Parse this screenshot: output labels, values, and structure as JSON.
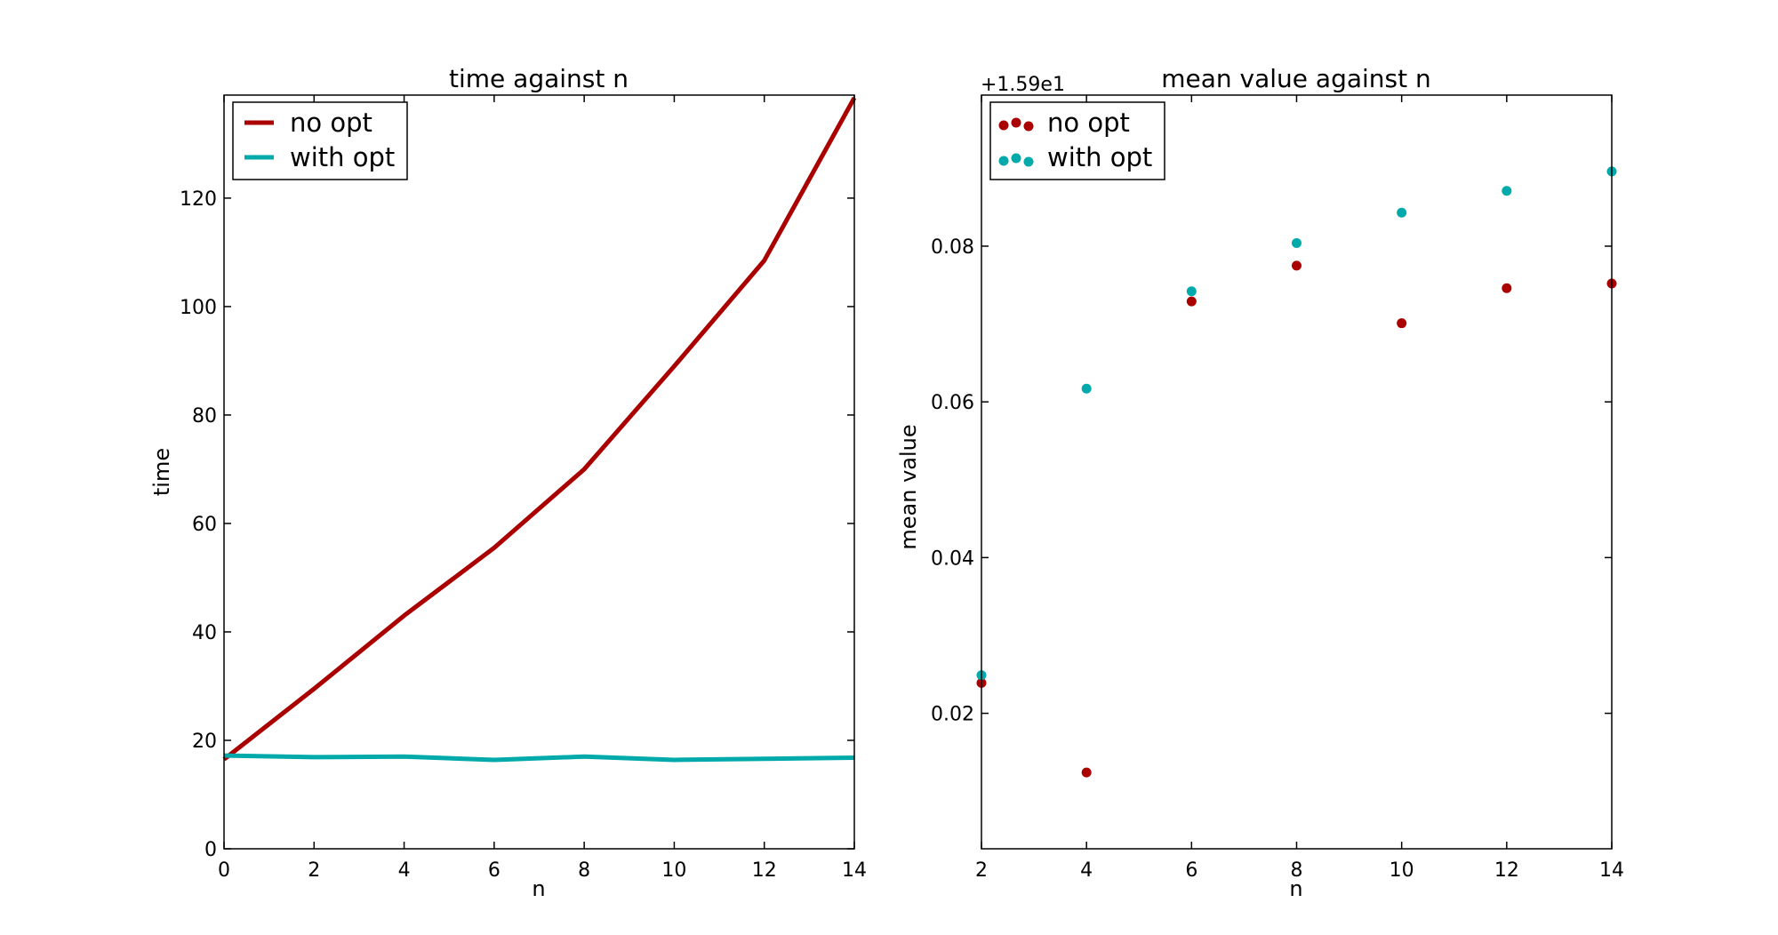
{
  "colors": {
    "no_opt": "#aa0000",
    "with_opt": "#00aaaa"
  },
  "chart_data": [
    {
      "type": "line",
      "title": "time against n",
      "xlabel": "n",
      "ylabel": "time",
      "xlim": [
        0,
        14
      ],
      "ylim": [
        0,
        139
      ],
      "xticks": [
        0,
        2,
        4,
        6,
        8,
        10,
        12,
        14
      ],
      "yticks": [
        0,
        20,
        40,
        60,
        80,
        100,
        120
      ],
      "x": [
        0,
        2,
        4,
        6,
        8,
        10,
        12,
        14
      ],
      "series": [
        {
          "name": "no opt",
          "values": [
            16.5,
            29.5,
            43.0,
            55.5,
            70.0,
            89.0,
            108.5,
            138.5
          ]
        },
        {
          "name": "with opt",
          "values": [
            17.2,
            16.9,
            17.0,
            16.4,
            17.0,
            16.4,
            16.6,
            16.8
          ]
        }
      ],
      "legend": "top-left",
      "grid": false
    },
    {
      "type": "scatter",
      "title": "mean value against n",
      "xlabel": "n",
      "ylabel": "mean value",
      "offset_text": "+1.59e1",
      "xlim": [
        2,
        14
      ],
      "ylim": [
        0.0026,
        0.0994
      ],
      "xticks": [
        2,
        4,
        6,
        8,
        10,
        12,
        14
      ],
      "yticks": [
        0.02,
        0.04,
        0.06,
        0.08
      ],
      "x": [
        2,
        4,
        6,
        8,
        10,
        12,
        14
      ],
      "series": [
        {
          "name": "no opt",
          "values": [
            0.0239,
            0.0124,
            0.0729,
            0.0775,
            0.0701,
            0.0746,
            0.0752
          ]
        },
        {
          "name": "with opt",
          "values": [
            0.0249,
            0.0617,
            0.0742,
            0.0804,
            0.0843,
            0.0871,
            0.0896
          ]
        }
      ],
      "legend": "top-left",
      "grid": false
    }
  ]
}
